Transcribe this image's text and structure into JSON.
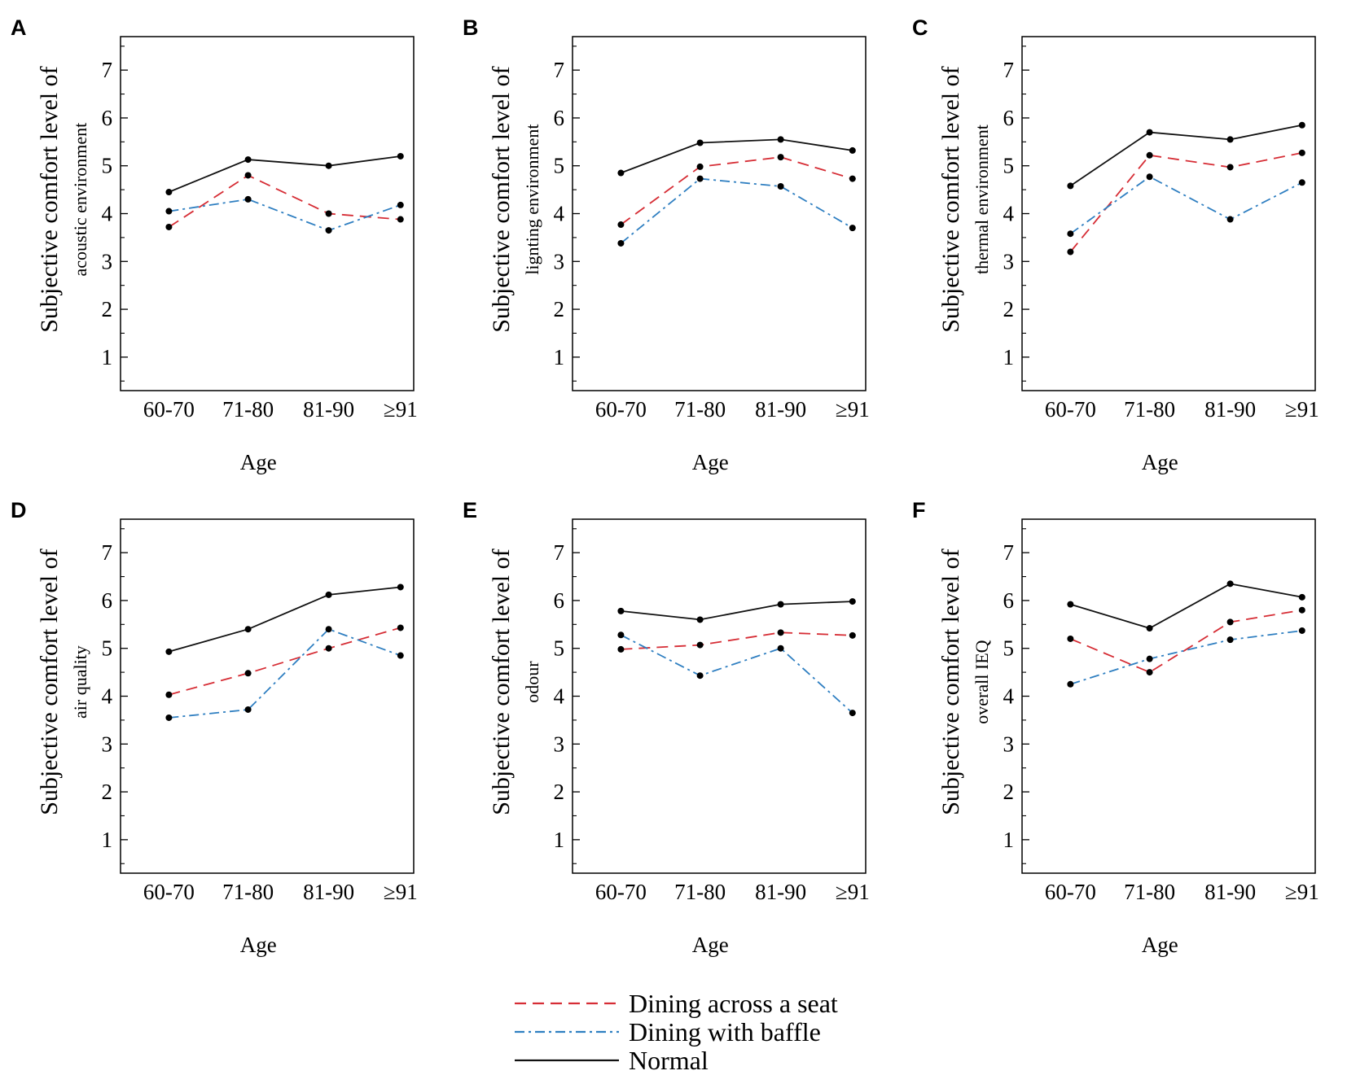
{
  "figure": {
    "legend": [
      {
        "key": "across",
        "label": "Dining across a seat",
        "color": "#d62d35",
        "dash": "14,8"
      },
      {
        "key": "baffle",
        "label": "Dining with baffle",
        "color": "#2f7fc1",
        "dash": "12,5,3,5"
      },
      {
        "key": "normal",
        "label": "Normal",
        "color": "#111111",
        "dash": ""
      }
    ]
  },
  "chart_data": [
    {
      "panel": "A",
      "type": "line",
      "ylabel": "Subjective comfort level of",
      "ylabel_sub": "acoustic environment",
      "xlabel": "Age",
      "categories": [
        "60-70",
        "71-80",
        "81-90",
        "≥91"
      ],
      "yticks": [
        1,
        2,
        3,
        4,
        5,
        6,
        7
      ],
      "ylim": [
        0.3,
        7.7
      ],
      "series": [
        {
          "key": "normal",
          "name": "Normal",
          "values": [
            4.45,
            5.13,
            5.0,
            5.2
          ]
        },
        {
          "key": "across",
          "name": "Dining across a seat",
          "values": [
            3.72,
            4.8,
            4.0,
            3.88
          ]
        },
        {
          "key": "baffle",
          "name": "Dining with baffle",
          "values": [
            4.05,
            4.3,
            3.65,
            4.18
          ]
        }
      ]
    },
    {
      "panel": "B",
      "type": "line",
      "ylabel": "Subjective comfort level of",
      "ylabel_sub": "lignting environment",
      "xlabel": "Age",
      "categories": [
        "60-70",
        "71-80",
        "81-90",
        "≥91"
      ],
      "yticks": [
        1,
        2,
        3,
        4,
        5,
        6,
        7
      ],
      "ylim": [
        0.3,
        7.7
      ],
      "series": [
        {
          "key": "normal",
          "name": "Normal",
          "values": [
            4.85,
            5.48,
            5.55,
            5.32
          ]
        },
        {
          "key": "across",
          "name": "Dining across a seat",
          "values": [
            3.77,
            4.98,
            5.18,
            4.73
          ]
        },
        {
          "key": "baffle",
          "name": "Dining with baffle",
          "values": [
            3.38,
            4.73,
            4.57,
            3.7
          ]
        }
      ]
    },
    {
      "panel": "C",
      "type": "line",
      "ylabel": "Subjective comfort level of",
      "ylabel_sub": "thermal environment",
      "xlabel": "Age",
      "categories": [
        "60-70",
        "71-80",
        "81-90",
        "≥91"
      ],
      "yticks": [
        1,
        2,
        3,
        4,
        5,
        6,
        7
      ],
      "ylim": [
        0.3,
        7.7
      ],
      "series": [
        {
          "key": "normal",
          "name": "Normal",
          "values": [
            4.58,
            5.7,
            5.55,
            5.85
          ]
        },
        {
          "key": "across",
          "name": "Dining across a seat",
          "values": [
            3.2,
            5.22,
            4.97,
            5.27
          ]
        },
        {
          "key": "baffle",
          "name": "Dining with baffle",
          "values": [
            3.58,
            4.77,
            3.88,
            4.65
          ]
        }
      ]
    },
    {
      "panel": "D",
      "type": "line",
      "ylabel": "Subjective comfort level of",
      "ylabel_sub": "air quality",
      "xlabel": "Age",
      "categories": [
        "60-70",
        "71-80",
        "81-90",
        "≥91"
      ],
      "yticks": [
        1,
        2,
        3,
        4,
        5,
        6,
        7
      ],
      "ylim": [
        0.3,
        7.7
      ],
      "series": [
        {
          "key": "normal",
          "name": "Normal",
          "values": [
            4.93,
            5.4,
            6.12,
            6.28
          ]
        },
        {
          "key": "across",
          "name": "Dining across a seat",
          "values": [
            4.03,
            4.48,
            5.0,
            5.43
          ]
        },
        {
          "key": "baffle",
          "name": "Dining with baffle",
          "values": [
            3.55,
            3.72,
            5.4,
            4.85
          ]
        }
      ]
    },
    {
      "panel": "E",
      "type": "line",
      "ylabel": "Subjective comfort level of",
      "ylabel_sub": "odour",
      "xlabel": "Age",
      "categories": [
        "60-70",
        "71-80",
        "81-90",
        "≥91"
      ],
      "yticks": [
        1,
        2,
        3,
        4,
        5,
        6,
        7
      ],
      "ylim": [
        0.3,
        7.7
      ],
      "series": [
        {
          "key": "normal",
          "name": "Normal",
          "values": [
            5.78,
            5.6,
            5.92,
            5.98
          ]
        },
        {
          "key": "across",
          "name": "Dining across a seat",
          "values": [
            4.98,
            5.07,
            5.33,
            5.27
          ]
        },
        {
          "key": "baffle",
          "name": "Dining with baffle",
          "values": [
            5.28,
            4.43,
            5.0,
            3.65
          ]
        }
      ]
    },
    {
      "panel": "F",
      "type": "line",
      "ylabel": "Subjective comfort level of",
      "ylabel_sub": "overall IEQ",
      "xlabel": "Age",
      "categories": [
        "60-70",
        "71-80",
        "81-90",
        "≥91"
      ],
      "yticks": [
        1,
        2,
        3,
        4,
        5,
        6,
        7
      ],
      "ylim": [
        0.3,
        7.7
      ],
      "series": [
        {
          "key": "normal",
          "name": "Normal",
          "values": [
            5.92,
            5.42,
            6.35,
            6.07
          ]
        },
        {
          "key": "across",
          "name": "Dining across a seat",
          "values": [
            5.2,
            4.5,
            5.55,
            5.8
          ]
        },
        {
          "key": "baffle",
          "name": "Dining with baffle",
          "values": [
            4.25,
            4.78,
            5.18,
            5.37
          ]
        }
      ]
    }
  ]
}
